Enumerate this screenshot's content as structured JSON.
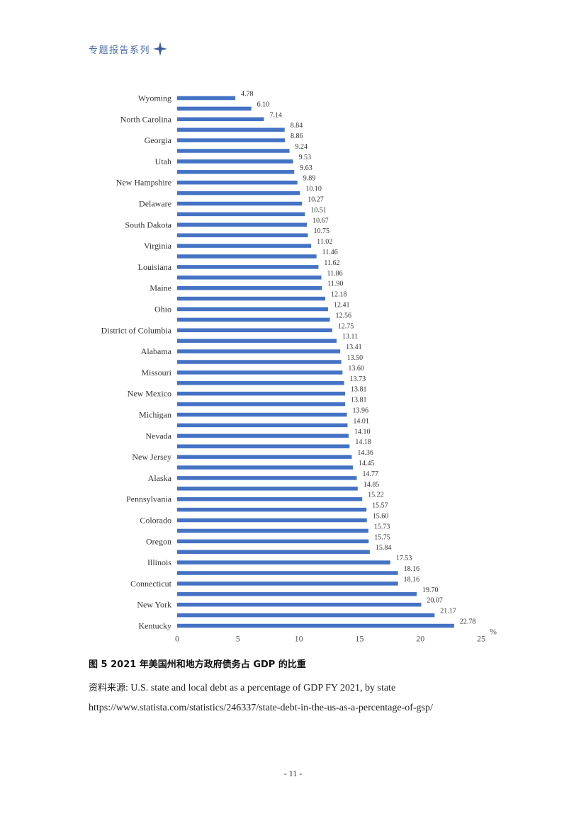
{
  "header": {
    "title": "专题报告系列",
    "icon": "four-point-star-icon",
    "color": "#4b6fa8"
  },
  "chart_data": {
    "type": "bar",
    "orientation": "horizontal",
    "categories": [
      "Wyoming",
      "",
      "North Carolina",
      "",
      "Georgia",
      "",
      "Utah",
      "",
      "New Hampshire",
      "",
      "Delaware",
      "",
      "South Dakota",
      "",
      "Virginia",
      "",
      "Louisiana",
      "",
      "Maine",
      "",
      "Ohio",
      "",
      "District of Columbia",
      "",
      "Alabama",
      "",
      "Missouri",
      "",
      "New Mexico",
      "",
      "Michigan",
      "",
      "Nevada",
      "",
      "New Jersey",
      "",
      "Alaska",
      "",
      "Pennsylvania",
      "",
      "Colorado",
      "",
      "Oregon",
      "",
      "Illinois",
      "",
      "Connecticut",
      "",
      "New York",
      "",
      "Kentucky"
    ],
    "values": [
      4.78,
      6.1,
      7.14,
      8.84,
      8.86,
      9.24,
      9.53,
      9.63,
      9.89,
      10.1,
      10.27,
      10.51,
      10.67,
      10.75,
      11.02,
      11.46,
      11.62,
      11.86,
      11.9,
      12.18,
      12.41,
      12.56,
      12.75,
      13.11,
      13.41,
      13.5,
      13.6,
      13.73,
      13.81,
      13.81,
      13.96,
      14.01,
      14.1,
      14.18,
      14.36,
      14.45,
      14.77,
      14.85,
      15.22,
      15.57,
      15.6,
      15.73,
      15.75,
      15.84,
      17.53,
      18.16,
      18.16,
      19.7,
      20.07,
      21.17,
      22.78
    ],
    "value_labels": [
      "4.78",
      "6.10",
      "7.14",
      "8.84",
      "8.86",
      "9.24",
      "9.53",
      "9.63",
      "9.89",
      "10.10",
      "10.27",
      "10.51",
      "10.67",
      "10.75",
      "11.02",
      "11.46",
      "11.62",
      "11.86",
      "11.90",
      "12.18",
      "12.41",
      "12.56",
      "12.75",
      "13.11",
      "13.41",
      "13.50",
      "13.60",
      "13.73",
      "13.81",
      "13.81",
      "13.96",
      "14.01",
      "14.10",
      "14.18",
      "14.36",
      "14.45",
      "14.77",
      "14.85",
      "15.22",
      "15.57",
      "15.60",
      "15.73",
      "15.75",
      "15.84",
      "17.53",
      "18.16",
      "18.16",
      "19.70",
      "20.07",
      "21.17",
      "22.78"
    ],
    "xlim": [
      0,
      25
    ],
    "xticks": [
      0,
      5,
      10,
      15,
      20,
      25
    ],
    "xtick_labels": [
      "0",
      "5",
      "10",
      "15",
      "20",
      "25"
    ],
    "xunit": "%",
    "bar_color": "#4472c4",
    "grid": false,
    "legend": "none"
  },
  "caption": "图 5 2021 年美国州和地方政府债务占 GDP 的比重",
  "source": {
    "prefix": "资料来源",
    "text": ": U.S. state and local debt as a percentage of GDP FY 2021, by state",
    "url": "https://www.statista.com/statistics/246337/state-debt-in-the-us-as-a-percentage-of-gsp/"
  },
  "page_number": "- 11 -"
}
